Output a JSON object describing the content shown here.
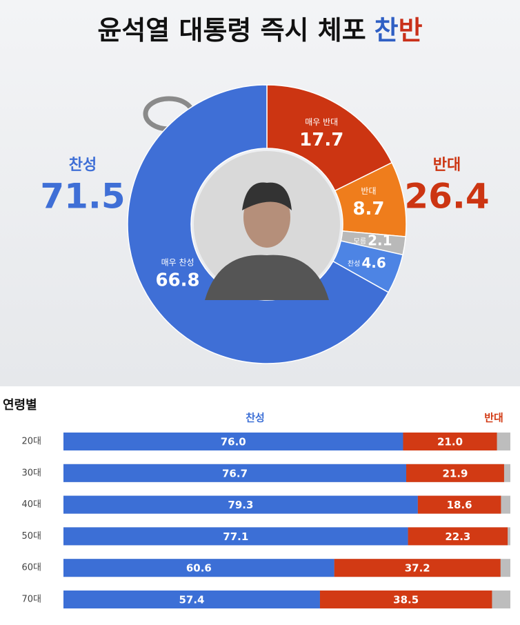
{
  "chart_data": [
    {
      "type": "pie",
      "donut": true,
      "title": [
        "윤석열 대통령 즉시 체포",
        "찬",
        "반"
      ],
      "title_colors": [
        "#111111",
        "#2f5fc4",
        "#c9301a"
      ],
      "categories": [
        "매우 반대",
        "반대",
        "모름",
        "찬성",
        "매우 찬성"
      ],
      "values": [
        17.7,
        8.7,
        2.1,
        4.6,
        66.8
      ],
      "colors": [
        "#cc3512",
        "#ef7d1c",
        "#b9b9b9",
        "#4d84e4",
        "#3f6fd6"
      ],
      "totals": [
        {
          "label": "찬성",
          "value": 71.5,
          "color": "#3f6fd6"
        },
        {
          "label": "반대",
          "value": 26.4,
          "color": "#cc3512"
        }
      ]
    },
    {
      "type": "bar",
      "orientation": "horizontal",
      "stacked": true,
      "title": "연령별",
      "categories": [
        "20대",
        "30대",
        "40대",
        "50대",
        "60대",
        "70대"
      ],
      "xlim": [
        0,
        100
      ],
      "series": [
        {
          "name": "찬성",
          "color": "#3c6fd6",
          "values": [
            76.0,
            76.7,
            79.3,
            77.1,
            60.6,
            57.4
          ],
          "value_labels": [
            "76.0",
            "76.7",
            "79.3",
            "77.1",
            "60.6",
            "57.4"
          ]
        },
        {
          "name": "반대",
          "color": "#d23a14",
          "values": [
            21.0,
            21.9,
            18.6,
            22.3,
            37.2,
            38.5
          ],
          "value_labels": [
            "21.0",
            "21.9",
            "18.6",
            "22.3",
            "37.2",
            "38.5"
          ]
        }
      ]
    }
  ]
}
